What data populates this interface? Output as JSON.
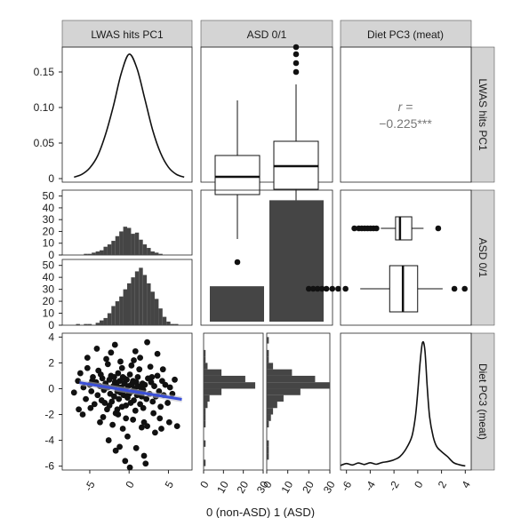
{
  "chart_data": {
    "type": "pairs",
    "variables": [
      "LWAS hits PC1",
      "ASD 0/1",
      "Diet PC3 (meat)"
    ],
    "x_axis_title": "0 (non-ASD) 1 (ASD)",
    "colors": {
      "bar": "#454545",
      "strip": "#d4d4d4",
      "regression": "#3a4fd8",
      "regression_band": "#b8b8c4",
      "correlation_text": "#777777"
    },
    "axes": {
      "col1_x_ticks": [
        "-5",
        "0",
        "5"
      ],
      "col1_x_range": [
        -8.5,
        8
      ],
      "col2_x_ticks": [
        "0",
        "10",
        "20",
        "30"
      ],
      "col2_x_range": [
        0,
        30
      ],
      "col3_x_ticks": [
        "-6",
        "-4",
        "-2",
        "0",
        "2",
        "4"
      ],
      "col3_x_range": [
        -6.5,
        4.5
      ],
      "row1_y_ticks": [
        "0.15",
        "0.10",
        "0.05",
        "0"
      ],
      "row1_y_range": [
        -0.005,
        0.185
      ],
      "row2_y_ticks": [
        "50",
        "40",
        "30",
        "20",
        "10",
        "0"
      ],
      "row2_y_range": [
        0,
        50
      ],
      "row3_y_ticks": [
        "4",
        "2",
        "0",
        "-2",
        "-4",
        "-6"
      ],
      "row3_y_range": [
        -6.3,
        4.3
      ]
    },
    "panels": {
      "density_lwas": {
        "x": [
          -7,
          -6,
          -5,
          -4,
          -3,
          -2,
          -1,
          0,
          1,
          2,
          3,
          4,
          5,
          6,
          7
        ],
        "y": [
          0.002,
          0.006,
          0.015,
          0.032,
          0.062,
          0.102,
          0.148,
          0.175,
          0.155,
          0.112,
          0.068,
          0.036,
          0.016,
          0.006,
          0.002
        ]
      },
      "box_lwas_by_asd": [
        {
          "group": "0",
          "whisker_low": -3.4,
          "q1": -0.9,
          "median": 0.1,
          "q3": 1.3,
          "whisker_high": 4.4,
          "outliers": [
            -4.7
          ]
        },
        {
          "group": "1",
          "whisker_low": -3.3,
          "q1": -0.6,
          "median": 0.7,
          "q3": 2.1,
          "whisker_high": 5.3,
          "outliers": [
            -4.3,
            -4.8,
            -5.6,
            -5.9,
            6.0,
            6.5,
            7.0,
            7.4
          ]
        }
      ],
      "correlation": {
        "prefix": "r =",
        "value": "−0.225***"
      },
      "hist_lwas_asd0": {
        "bin_start": -5.75,
        "bin_width": 0.5,
        "counts": [
          1,
          1,
          2,
          3,
          4,
          7,
          9,
          12,
          16,
          20,
          24,
          23,
          18,
          19,
          13,
          9,
          6,
          3,
          2,
          1
        ]
      },
      "hist_lwas_asd1": {
        "bin_start": -6.75,
        "bin_width": 0.5,
        "counts": [
          1,
          0,
          1,
          1,
          0,
          2,
          4,
          6,
          10,
          16,
          20,
          24,
          30,
          35,
          40,
          45,
          48,
          42,
          35,
          28,
          22,
          14,
          7,
          3,
          1,
          1
        ]
      },
      "bar_asd": [
        {
          "group": "0",
          "count": 14
        },
        {
          "group": "1",
          "count": 48
        }
      ],
      "box_diet_by_asd": [
        {
          "group": "0",
          "whisker_low": -1.3,
          "q1": -0.3,
          "median": 0.0,
          "q3": 0.8,
          "whisker_high": 1.6,
          "outliers": [
            -3.1,
            -2.8,
            -2.6,
            -2.4,
            -2.2,
            -2.0,
            -1.8,
            -1.6,
            2.6
          ]
        },
        {
          "group": "1",
          "whisker_low": -2.7,
          "q1": -0.7,
          "median": 0.2,
          "q3": 1.2,
          "whisker_high": 2.9,
          "outliers": [
            -6.2,
            -5.9,
            -5.6,
            -5.3,
            -5.0,
            -4.6,
            -4.2,
            -3.7,
            3.7,
            4.4
          ]
        }
      ],
      "hist_diet_asd0": {
        "bin_start": -6.0,
        "bin_width": 0.5,
        "counts": [
          1,
          0,
          0,
          1,
          0,
          0,
          1,
          1,
          1,
          2,
          3,
          9,
          26,
          21,
          9,
          2,
          1,
          1,
          0,
          0
        ]
      },
      "hist_diet_asd1": {
        "bin_start": -6.0,
        "bin_width": 0.5,
        "counts": [
          0,
          1,
          1,
          1,
          0,
          0,
          1,
          2,
          3,
          5,
          8,
          16,
          36,
          23,
          12,
          3,
          1,
          1,
          0,
          1
        ]
      },
      "density_diet": {
        "x": [
          -6.5,
          -6.0,
          -5.5,
          -5.0,
          -4.5,
          -4.0,
          -3.5,
          -3.0,
          -2.5,
          -2.0,
          -1.5,
          -1.0,
          -0.5,
          -0.2,
          0.0,
          0.2,
          0.4,
          0.6,
          0.8,
          1.0,
          1.3,
          1.6,
          2.0,
          2.5,
          3.0,
          3.5,
          4.0
        ],
        "y": [
          0.004,
          0.012,
          0.006,
          0.014,
          0.008,
          0.015,
          0.009,
          0.016,
          0.02,
          0.027,
          0.04,
          0.07,
          0.12,
          0.2,
          0.3,
          0.42,
          0.5,
          0.47,
          0.32,
          0.2,
          0.12,
          0.08,
          0.06,
          0.04,
          0.016,
          0.007,
          0.002
        ],
        "y_range": [
          0,
          0.52
        ]
      },
      "scatter_diet_vs_lwas": {
        "points": [
          [
            -7,
            -0.3
          ],
          [
            -6.5,
            0.6
          ],
          [
            -6.2,
            1.2
          ],
          [
            -5.8,
            0.1
          ],
          [
            -5.5,
            -0.8
          ],
          [
            -5.3,
            1.6
          ],
          [
            -5,
            0.3
          ],
          [
            -4.8,
            -0.2
          ],
          [
            -4.6,
            0.9
          ],
          [
            -4.4,
            -1.2
          ],
          [
            -4.2,
            0.5
          ],
          [
            -4,
            -0.5
          ],
          [
            -3.9,
            1.4
          ],
          [
            -3.7,
            0.2
          ],
          [
            -3.5,
            -0.9
          ],
          [
            -3.4,
            0.8
          ],
          [
            -3.2,
            -0.1
          ],
          [
            -3,
            0.4
          ],
          [
            -2.9,
            2.3
          ],
          [
            -2.8,
            -1.6
          ],
          [
            -2.7,
            0.1
          ],
          [
            -2.5,
            0.7
          ],
          [
            -2.4,
            -0.4
          ],
          [
            -2.3,
            1
          ],
          [
            -2.2,
            -1
          ],
          [
            -2,
            0.2
          ],
          [
            -1.9,
            -0.6
          ],
          [
            -1.8,
            0.5
          ],
          [
            -1.7,
            -1.9
          ],
          [
            -1.6,
            0.3
          ],
          [
            -1.5,
            -0.2
          ],
          [
            -1.4,
            1.2
          ],
          [
            -1.3,
            -0.8
          ],
          [
            -1.2,
            0.6
          ],
          [
            -1.1,
            -0.3
          ],
          [
            -1,
            0.1
          ],
          [
            -0.9,
            -1.4
          ],
          [
            -0.8,
            0.9
          ],
          [
            -0.7,
            -0.5
          ],
          [
            -0.6,
            0.4
          ],
          [
            -0.5,
            -0.1
          ],
          [
            -0.4,
            -2.3
          ],
          [
            -0.3,
            0.7
          ],
          [
            -0.2,
            -0.7
          ],
          [
            -0.1,
            0.2
          ],
          [
            0,
            -0.4
          ],
          [
            0.1,
            1.1
          ],
          [
            0.2,
            -1.1
          ],
          [
            0.3,
            0.3
          ],
          [
            0.4,
            -0.2
          ],
          [
            0.5,
            0.6
          ],
          [
            0.6,
            -0.9
          ],
          [
            0.7,
            0
          ],
          [
            0.8,
            -1.7
          ],
          [
            0.9,
            0.5
          ],
          [
            1,
            -0.5
          ],
          [
            1.1,
            0.2
          ],
          [
            1.2,
            -0.3
          ],
          [
            1.3,
            1.5
          ],
          [
            1.4,
            -1.2
          ],
          [
            1.5,
            0.1
          ],
          [
            1.6,
            -0.6
          ],
          [
            1.7,
            0.4
          ],
          [
            1.8,
            -0.1
          ],
          [
            1.9,
            -2.6
          ],
          [
            2,
            0.3
          ],
          [
            2.2,
            -0.8
          ],
          [
            2.4,
            0.8
          ],
          [
            2.6,
            -0.4
          ],
          [
            2.8,
            0.5
          ],
          [
            3,
            -1
          ],
          [
            3.2,
            0.2
          ],
          [
            3.4,
            -0.6
          ],
          [
            3.6,
            1
          ],
          [
            3.8,
            -0.2
          ],
          [
            4,
            -1.4
          ],
          [
            4.2,
            0.6
          ],
          [
            4.4,
            -0.5
          ],
          [
            4.6,
            0.3
          ],
          [
            4.9,
            -1.1
          ],
          [
            5.2,
            0.1
          ],
          [
            5.5,
            -0.4
          ],
          [
            5.8,
            0.7
          ],
          [
            -3.3,
            -2.2
          ],
          [
            -2.1,
            -2.8
          ],
          [
            -1.4,
            -2
          ],
          [
            -0.8,
            -3.1
          ],
          [
            0.5,
            -2.4
          ],
          [
            1.6,
            -3
          ],
          [
            2.3,
            -2.9
          ],
          [
            3.3,
            -3.4
          ],
          [
            4.1,
            -3.1
          ],
          [
            5.1,
            -2.6
          ],
          [
            6.1,
            -2.9
          ],
          [
            -2.6,
            -4
          ],
          [
            -1.2,
            -4.5
          ],
          [
            -0.2,
            -3.7
          ],
          [
            0.9,
            -4.6
          ],
          [
            1.9,
            -5.2
          ],
          [
            -0.5,
            -5.6
          ],
          [
            0.1,
            -6.1
          ],
          [
            2.1,
            -5.8
          ],
          [
            -1.7,
            -4.8
          ],
          [
            -5.3,
            2.4
          ],
          [
            -4.1,
            3.1
          ],
          [
            -1.8,
            3.4
          ],
          [
            0.8,
            2.9
          ],
          [
            2.3,
            3.6
          ],
          [
            -2.3,
            2.8
          ],
          [
            1.4,
            2.4
          ],
          [
            3.6,
            2.7
          ],
          [
            -6.4,
            -1.6
          ],
          [
            -5.9,
            -2
          ],
          [
            -4.9,
            -1.5
          ],
          [
            -3.7,
            -2.6
          ],
          [
            -2.7,
            1.9
          ],
          [
            -1.1,
            2.1
          ],
          [
            0.3,
            1.8
          ],
          [
            2.7,
            1.7
          ],
          [
            4.3,
            1.5
          ],
          [
            -0.9,
            1.6
          ],
          [
            1.1,
            0.9
          ],
          [
            -2.5,
            -1.3
          ],
          [
            -1.5,
            -1.6
          ],
          [
            3.1,
            -1.9
          ],
          [
            3.9,
            -2.3
          ],
          [
            -3.6,
            1.1
          ],
          [
            -4.7,
            0.6
          ],
          [
            0.6,
            2.2
          ],
          [
            -0.4,
            -1.3
          ],
          [
            1.8,
            -1.5
          ],
          [
            2.9,
            0.9
          ],
          [
            -0.6,
            0.8
          ],
          [
            0.4,
            0.4
          ],
          [
            -1.9,
            0.9
          ],
          [
            -3.1,
            -1.1
          ]
        ],
        "regression": {
          "intercept": -0.16,
          "slope": -0.1,
          "x_from": -6.3,
          "x_to": 6.7,
          "band_halfwidth": 0.22
        }
      }
    }
  }
}
